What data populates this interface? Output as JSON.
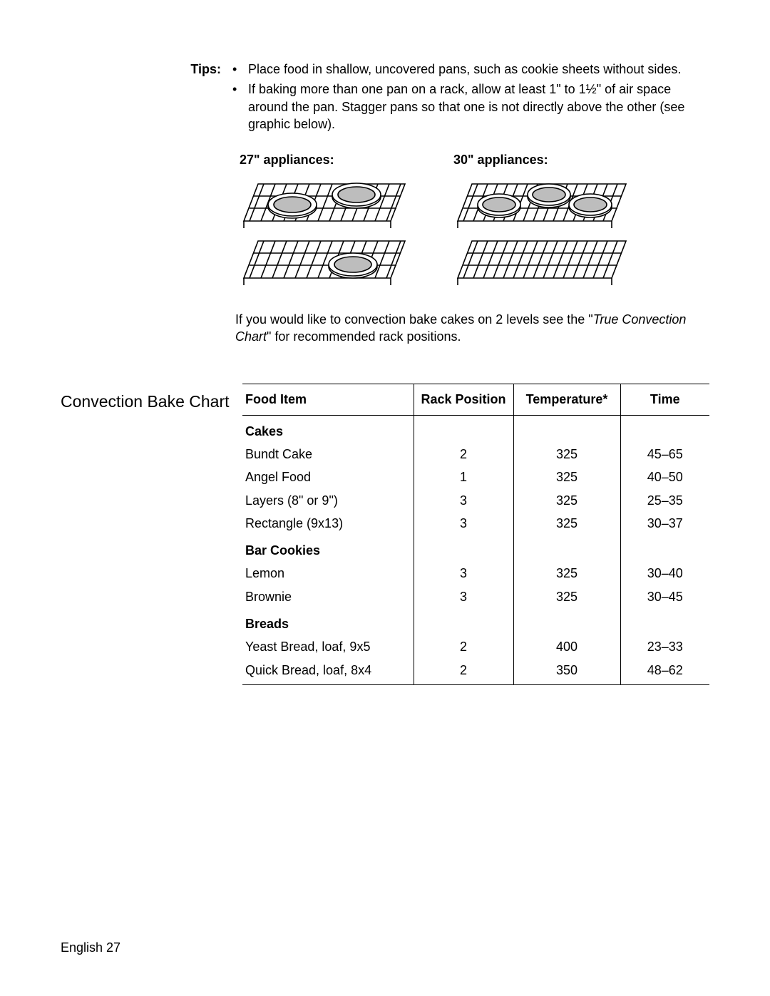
{
  "tips": {
    "label": "Tips:",
    "items": [
      "Place food in shallow, uncovered pans, such as cookie sheets without sides.",
      "If baking more than one pan on a rack, allow at least 1\" to 1½\" of air space around the pan. Stagger pans so that one is not directly above the other (see graphic below)."
    ]
  },
  "diagrams": {
    "left_label": "27\" appliances:",
    "right_label": "30\" appliances:"
  },
  "closing": {
    "prefix": "If you would like to convection bake cakes on 2 levels see the \"",
    "italic": "True Convection Chart",
    "suffix": "\" for recommended rack positions."
  },
  "chart": {
    "title": "Convection Bake Chart",
    "headers": {
      "food": "Food Item",
      "rack": "Rack Position",
      "temp": "Temperature*",
      "time": "Time"
    },
    "sections": [
      {
        "name": "Cakes",
        "rows": [
          {
            "food": "Bundt Cake",
            "rack": "2",
            "temp": "325",
            "time": "45–65"
          },
          {
            "food": "Angel Food",
            "rack": "1",
            "temp": "325",
            "time": "40–50"
          },
          {
            "food": "Layers (8\" or 9\")",
            "rack": "3",
            "temp": "325",
            "time": "25–35"
          },
          {
            "food": "Rectangle (9x13)",
            "rack": "3",
            "temp": "325",
            "time": "30–37"
          }
        ]
      },
      {
        "name": "Bar Cookies",
        "rows": [
          {
            "food": "Lemon",
            "rack": "3",
            "temp": "325",
            "time": "30–40"
          },
          {
            "food": "Brownie",
            "rack": "3",
            "temp": "325",
            "time": "30–45"
          }
        ]
      },
      {
        "name": "Breads",
        "rows": [
          {
            "food": "Yeast Bread, loaf, 9x5",
            "rack": "2",
            "temp": "400",
            "time": "23–33"
          },
          {
            "food": "Quick Bread, loaf, 8x4",
            "rack": "2",
            "temp": "350",
            "time": "48–62"
          }
        ]
      }
    ]
  },
  "footer": "English 27"
}
